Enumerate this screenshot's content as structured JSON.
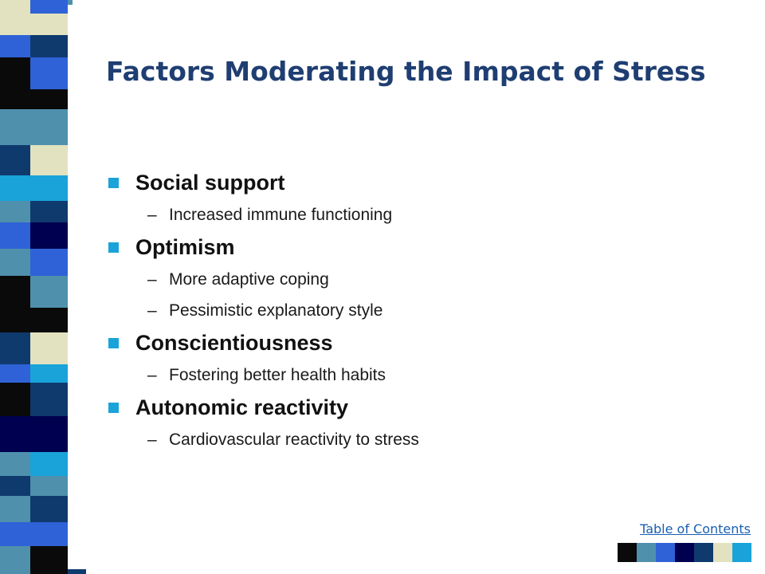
{
  "title": "Factors Moderating the Impact of Stress",
  "bullets": [
    {
      "label": "Social support",
      "subs": [
        "Increased immune functioning"
      ]
    },
    {
      "label": "Optimism",
      "subs": [
        "More adaptive coping",
        "Pessimistic explanatory style"
      ]
    },
    {
      "label": "Conscientiousness",
      "subs": [
        "Fostering better health habits"
      ]
    },
    {
      "label": "Autonomic reactivity",
      "subs": [
        "Cardiovascular reactivity to stress"
      ]
    }
  ],
  "sub_marker": "–",
  "toc_link": "Table of Contents",
  "colors": {
    "title": "#1f3e72",
    "bullet_marker": "#19a3d9",
    "link": "#1a5fb4"
  },
  "palette": [
    "#0a0a0a",
    "#4f90ad",
    "#2f62d6",
    "#000050",
    "#0f3a6e",
    "#e2e2c0",
    "#19a3d9"
  ]
}
